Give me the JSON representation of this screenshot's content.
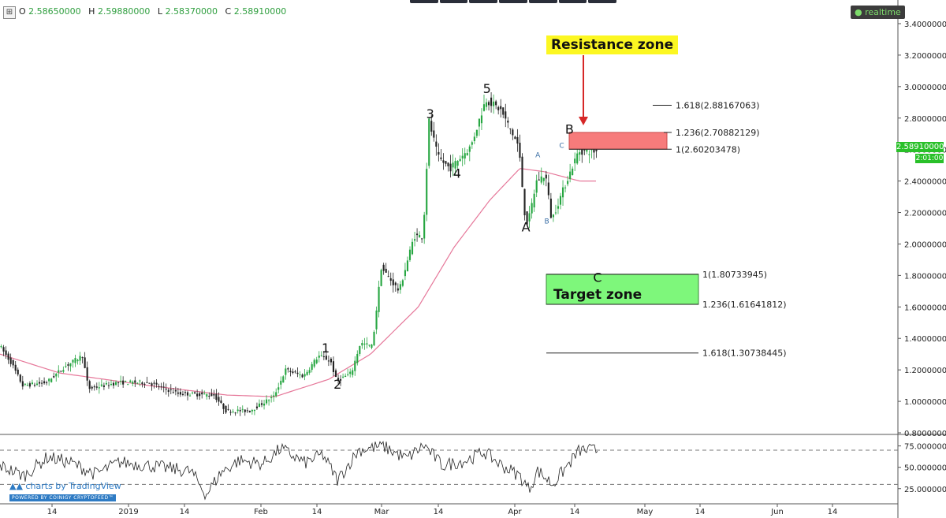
{
  "header": {
    "ohlc": [
      {
        "key": "O",
        "value": "2.58650000"
      },
      {
        "key": "H",
        "value": "2.59880000"
      },
      {
        "key": "L",
        "value": "2.58370000"
      },
      {
        "key": "C",
        "value": "2.58910000"
      }
    ],
    "realtime_label": "realtime",
    "last_price": "2.58910000",
    "countdown": "2:01:00",
    "watermark": "charts by TradingView",
    "powered_by": "POWERED BY COINIGY CRYPTOFEED™"
  },
  "colors": {
    "candle_up": "#26a641",
    "candle_down": "#222222",
    "moving_average": "#e6789a",
    "resistance_zone": "#f77b7b",
    "target_zone": "#7ef77b",
    "highlight_label": "#fcf722",
    "arrow": "#d62727",
    "badge": "#29c029"
  },
  "chart_data": [
    {
      "type": "candlestick",
      "title": "",
      "ylim": [
        0.8,
        3.45
      ],
      "y_scale": "linear",
      "y_ticks": [
        "3.40000000",
        "3.20000000",
        "3.00000000",
        "2.80000000",
        "2.60000000",
        "2.40000000",
        "2.20000000",
        "2.00000000",
        "1.80000000",
        "1.60000000",
        "1.40000000",
        "1.20000000",
        "1.00000000",
        "0.80000000"
      ],
      "x_ticks": [
        "14",
        "2019",
        "14",
        "Feb",
        "14",
        "Mar",
        "14",
        "Apr",
        "14",
        "May",
        "14",
        "Jun",
        "14"
      ],
      "grid": false,
      "price_anchors": [
        {
          "x": 0.0,
          "y": 1.36
        },
        {
          "x": 0.02,
          "y": 1.25
        },
        {
          "x": 0.04,
          "y": 1.1
        },
        {
          "x": 0.08,
          "y": 1.12
        },
        {
          "x": 0.11,
          "y": 1.22
        },
        {
          "x": 0.14,
          "y": 1.29
        },
        {
          "x": 0.15,
          "y": 1.08
        },
        {
          "x": 0.2,
          "y": 1.12
        },
        {
          "x": 0.25,
          "y": 1.12
        },
        {
          "x": 0.27,
          "y": 1.09
        },
        {
          "x": 0.3,
          "y": 1.05
        },
        {
          "x": 0.36,
          "y": 1.04
        },
        {
          "x": 0.38,
          "y": 0.94
        },
        {
          "x": 0.42,
          "y": 0.94
        },
        {
          "x": 0.46,
          "y": 1.03
        },
        {
          "x": 0.48,
          "y": 1.2
        },
        {
          "x": 0.51,
          "y": 1.16
        },
        {
          "x": 0.535,
          "y": 1.29
        },
        {
          "x": 0.555,
          "y": 1.26
        },
        {
          "x": 0.565,
          "y": 1.13
        },
        {
          "x": 0.59,
          "y": 1.18
        },
        {
          "x": 0.605,
          "y": 1.37
        },
        {
          "x": 0.625,
          "y": 1.35
        },
        {
          "x": 0.64,
          "y": 1.85
        },
        {
          "x": 0.67,
          "y": 1.7
        },
        {
          "x": 0.695,
          "y": 2.05
        },
        {
          "x": 0.71,
          "y": 2.05
        },
        {
          "x": 0.72,
          "y": 2.78
        },
        {
          "x": 0.735,
          "y": 2.55
        },
        {
          "x": 0.755,
          "y": 2.48
        },
        {
          "x": 0.79,
          "y": 2.62
        },
        {
          "x": 0.815,
          "y": 2.92
        },
        {
          "x": 0.84,
          "y": 2.85
        },
        {
          "x": 0.87,
          "y": 2.62
        },
        {
          "x": 0.88,
          "y": 2.2
        },
        {
          "x": 0.885,
          "y": 2.12
        },
        {
          "x": 0.9,
          "y": 2.4
        },
        {
          "x": 0.915,
          "y": 2.44
        },
        {
          "x": 0.925,
          "y": 2.15
        },
        {
          "x": 0.945,
          "y": 2.35
        },
        {
          "x": 0.97,
          "y": 2.5891
        }
      ],
      "ma_anchors": [
        {
          "x": 0.0,
          "y": 1.3
        },
        {
          "x": 0.1,
          "y": 1.18
        },
        {
          "x": 0.25,
          "y": 1.1
        },
        {
          "x": 0.38,
          "y": 1.04
        },
        {
          "x": 0.46,
          "y": 1.03
        },
        {
          "x": 0.55,
          "y": 1.14
        },
        {
          "x": 0.62,
          "y": 1.3
        },
        {
          "x": 0.7,
          "y": 1.6
        },
        {
          "x": 0.76,
          "y": 1.98
        },
        {
          "x": 0.82,
          "y": 2.28
        },
        {
          "x": 0.87,
          "y": 2.48
        },
        {
          "x": 0.91,
          "y": 2.46
        },
        {
          "x": 0.97,
          "y": 2.4
        }
      ],
      "wave_labels": [
        {
          "label": "1",
          "x": 0.545,
          "y": 1.31
        },
        {
          "label": "2",
          "x": 0.565,
          "y": 1.08
        },
        {
          "label": "3",
          "x": 0.72,
          "y": 2.8
        },
        {
          "label": "4",
          "x": 0.765,
          "y": 2.42
        },
        {
          "label": "5",
          "x": 0.815,
          "y": 2.96
        },
        {
          "label": "A",
          "x": 0.88,
          "y": 2.08
        },
        {
          "label": "B",
          "x": 0.953,
          "y": 2.7
        },
        {
          "label": "C",
          "x": 1.0,
          "y": 1.76
        }
      ],
      "subwave_labels": [
        {
          "label": "A",
          "x": 0.9,
          "y": 2.55
        },
        {
          "label": "B",
          "x": 0.915,
          "y": 2.13
        },
        {
          "label": "C",
          "x": 0.94,
          "y": 2.61
        }
      ],
      "fib_levels": [
        {
          "label": "1.618(2.88167063)",
          "value": 2.88167063
        },
        {
          "label": "1.236(2.70882129)",
          "value": 2.70882129
        },
        {
          "label": "1(2.60203478)",
          "value": 2.60203478
        },
        {
          "label": "1(1.80733945)",
          "value": 1.80733945
        },
        {
          "label": "1.236(1.61641812)",
          "value": 1.61641812
        },
        {
          "label": "1.618(1.30738445)",
          "value": 1.30738445
        }
      ],
      "zones": [
        {
          "name": "Resistance zone",
          "from": 2.60203478,
          "to": 2.70882129
        },
        {
          "name": "Target zone",
          "from": 1.61641812,
          "to": 1.80733945
        }
      ]
    },
    {
      "type": "line",
      "title": "",
      "ylim": [
        10,
        82
      ],
      "y_ticks": [
        "75.00000000",
        "50.00000000",
        "25.00000000"
      ],
      "reference_lines": [
        70,
        30
      ],
      "anchors": [
        {
          "x": 0.0,
          "y": 52
        },
        {
          "x": 0.04,
          "y": 40
        },
        {
          "x": 0.08,
          "y": 62
        },
        {
          "x": 0.12,
          "y": 55
        },
        {
          "x": 0.16,
          "y": 42
        },
        {
          "x": 0.2,
          "y": 56
        },
        {
          "x": 0.25,
          "y": 52
        },
        {
          "x": 0.29,
          "y": 48
        },
        {
          "x": 0.32,
          "y": 45
        },
        {
          "x": 0.345,
          "y": 18
        },
        {
          "x": 0.37,
          "y": 44
        },
        {
          "x": 0.4,
          "y": 58
        },
        {
          "x": 0.44,
          "y": 54
        },
        {
          "x": 0.47,
          "y": 72
        },
        {
          "x": 0.51,
          "y": 55
        },
        {
          "x": 0.54,
          "y": 65
        },
        {
          "x": 0.565,
          "y": 35
        },
        {
          "x": 0.6,
          "y": 70
        },
        {
          "x": 0.64,
          "y": 75
        },
        {
          "x": 0.68,
          "y": 60
        },
        {
          "x": 0.71,
          "y": 76
        },
        {
          "x": 0.74,
          "y": 52
        },
        {
          "x": 0.78,
          "y": 58
        },
        {
          "x": 0.81,
          "y": 68
        },
        {
          "x": 0.84,
          "y": 52
        },
        {
          "x": 0.87,
          "y": 40
        },
        {
          "x": 0.885,
          "y": 24
        },
        {
          "x": 0.9,
          "y": 46
        },
        {
          "x": 0.925,
          "y": 30
        },
        {
          "x": 0.97,
          "y": 70
        }
      ]
    }
  ]
}
